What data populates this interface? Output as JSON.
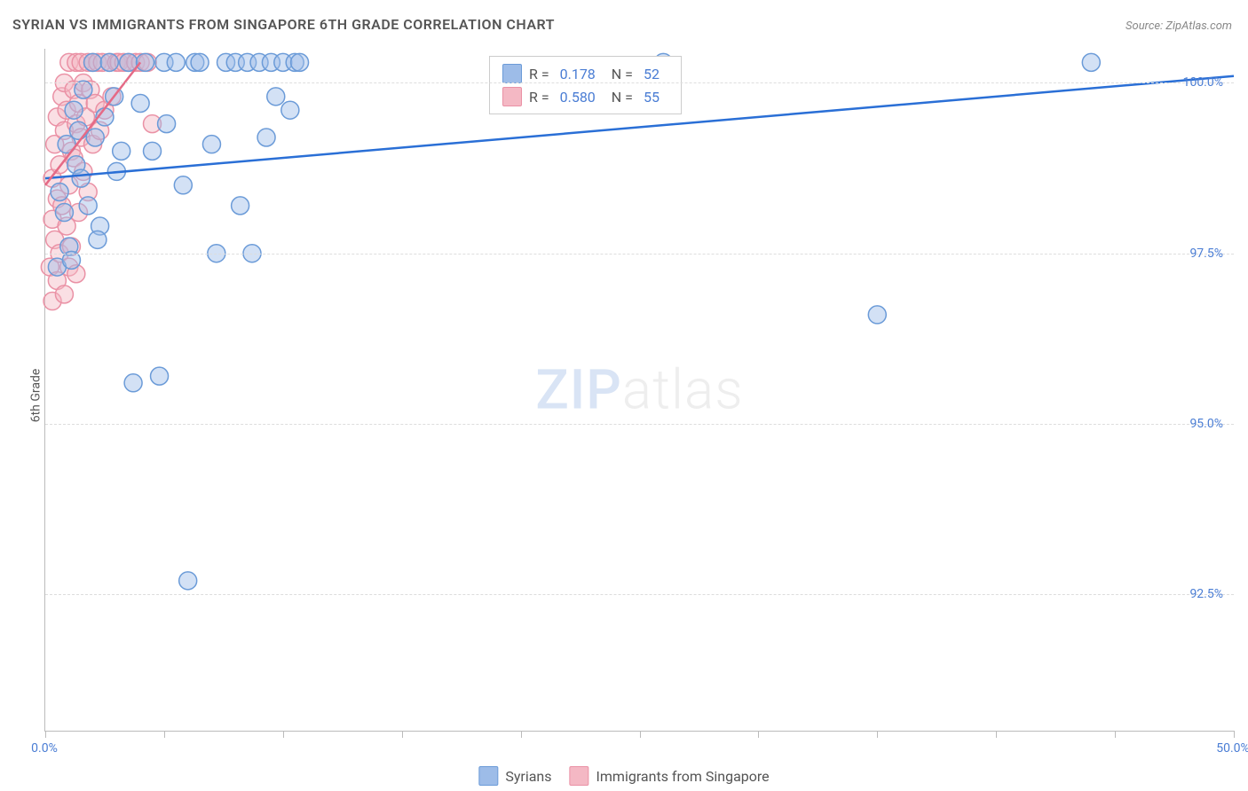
{
  "title": "SYRIAN VS IMMIGRANTS FROM SINGAPORE 6TH GRADE CORRELATION CHART",
  "source": "Source: ZipAtlas.com",
  "ylabel": "6th Grade",
  "watermark": {
    "zip": "ZIP",
    "atlas": "atlas"
  },
  "chart": {
    "type": "scatter",
    "xlim": [
      0,
      50
    ],
    "ylim": [
      90.5,
      100.5
    ],
    "xticks": [
      0,
      5,
      10,
      15,
      20,
      25,
      30,
      35,
      40,
      45,
      50
    ],
    "xlabel_min": "0.0%",
    "xlabel_max": "50.0%",
    "yticks": [
      92.5,
      95.0,
      97.5,
      100.0
    ],
    "ytick_labels": [
      "92.5%",
      "95.0%",
      "97.5%",
      "100.0%"
    ],
    "background_color": "#ffffff",
    "grid_color": "#dddddd",
    "axis_color": "#bbbbbb",
    "marker_radius": 10,
    "marker_opacity": 0.45,
    "line_width": 2.5,
    "series": [
      {
        "name": "Syrians",
        "color_fill": "#9dbce8",
        "color_stroke": "#6b9bd8",
        "line_color": "#2a6fd6",
        "R": "0.178",
        "N": "52",
        "regression": {
          "x1": 0,
          "y1": 98.6,
          "x2": 50,
          "y2": 100.1
        },
        "points": [
          [
            0.5,
            97.3
          ],
          [
            0.6,
            98.4
          ],
          [
            0.8,
            98.1
          ],
          [
            0.9,
            99.1
          ],
          [
            1.0,
            97.6
          ],
          [
            1.2,
            99.6
          ],
          [
            1.3,
            98.8
          ],
          [
            1.4,
            99.3
          ],
          [
            1.6,
            99.9
          ],
          [
            1.8,
            98.2
          ],
          [
            2.0,
            100.3
          ],
          [
            2.1,
            99.2
          ],
          [
            2.3,
            97.9
          ],
          [
            2.5,
            99.5
          ],
          [
            2.7,
            100.3
          ],
          [
            3.0,
            98.7
          ],
          [
            3.2,
            99.0
          ],
          [
            3.5,
            100.3
          ],
          [
            3.7,
            95.6
          ],
          [
            4.0,
            99.7
          ],
          [
            4.2,
            100.3
          ],
          [
            4.5,
            99.0
          ],
          [
            4.8,
            95.7
          ],
          [
            5.0,
            100.3
          ],
          [
            5.1,
            99.4
          ],
          [
            5.5,
            100.3
          ],
          [
            5.8,
            98.5
          ],
          [
            6.0,
            92.7
          ],
          [
            6.3,
            100.3
          ],
          [
            6.5,
            100.3
          ],
          [
            7.0,
            99.1
          ],
          [
            7.2,
            97.5
          ],
          [
            7.6,
            100.3
          ],
          [
            8.0,
            100.3
          ],
          [
            8.2,
            98.2
          ],
          [
            8.5,
            100.3
          ],
          [
            8.7,
            97.5
          ],
          [
            9.0,
            100.3
          ],
          [
            9.3,
            99.2
          ],
          [
            9.5,
            100.3
          ],
          [
            9.7,
            99.8
          ],
          [
            10.0,
            100.3
          ],
          [
            10.3,
            99.6
          ],
          [
            10.5,
            100.3
          ],
          [
            10.7,
            100.3
          ],
          [
            26.0,
            100.3
          ],
          [
            35.0,
            96.6
          ],
          [
            44.0,
            100.3
          ],
          [
            1.1,
            97.4
          ],
          [
            1.5,
            98.6
          ],
          [
            2.2,
            97.7
          ],
          [
            2.9,
            99.8
          ]
        ]
      },
      {
        "name": "Immigrants from Singapore",
        "color_fill": "#f4b8c4",
        "color_stroke": "#ea91a5",
        "line_color": "#e56a86",
        "R": "0.580",
        "N": "55",
        "regression": {
          "x1": 0,
          "y1": 98.5,
          "x2": 4.0,
          "y2": 100.3
        },
        "points": [
          [
            0.2,
            97.3
          ],
          [
            0.3,
            98.0
          ],
          [
            0.3,
            98.6
          ],
          [
            0.4,
            97.7
          ],
          [
            0.4,
            99.1
          ],
          [
            0.5,
            98.3
          ],
          [
            0.5,
            99.5
          ],
          [
            0.6,
            97.5
          ],
          [
            0.6,
            98.8
          ],
          [
            0.7,
            99.8
          ],
          [
            0.7,
            98.2
          ],
          [
            0.8,
            99.3
          ],
          [
            0.8,
            100.0
          ],
          [
            0.9,
            97.9
          ],
          [
            0.9,
            99.6
          ],
          [
            1.0,
            98.5
          ],
          [
            1.0,
            100.3
          ],
          [
            1.1,
            99.0
          ],
          [
            1.1,
            97.6
          ],
          [
            1.2,
            99.9
          ],
          [
            1.2,
            98.9
          ],
          [
            1.3,
            100.3
          ],
          [
            1.3,
            99.4
          ],
          [
            1.4,
            98.1
          ],
          [
            1.4,
            99.7
          ],
          [
            1.5,
            100.3
          ],
          [
            1.5,
            99.2
          ],
          [
            1.6,
            98.7
          ],
          [
            1.6,
            100.0
          ],
          [
            1.7,
            99.5
          ],
          [
            1.8,
            100.3
          ],
          [
            1.8,
            98.4
          ],
          [
            1.9,
            99.9
          ],
          [
            2.0,
            100.3
          ],
          [
            2.0,
            99.1
          ],
          [
            2.1,
            99.7
          ],
          [
            2.2,
            100.3
          ],
          [
            2.3,
            99.3
          ],
          [
            2.4,
            100.3
          ],
          [
            2.5,
            99.6
          ],
          [
            2.7,
            100.3
          ],
          [
            2.8,
            99.8
          ],
          [
            3.0,
            100.3
          ],
          [
            3.1,
            100.3
          ],
          [
            3.3,
            100.3
          ],
          [
            3.5,
            100.3
          ],
          [
            3.8,
            100.3
          ],
          [
            4.0,
            100.3
          ],
          [
            4.3,
            100.3
          ],
          [
            4.5,
            99.4
          ],
          [
            0.3,
            96.8
          ],
          [
            0.5,
            97.1
          ],
          [
            0.8,
            96.9
          ],
          [
            1.0,
            97.3
          ],
          [
            1.3,
            97.2
          ]
        ]
      }
    ]
  },
  "legend": {
    "r_label": "R =",
    "n_label": "N ="
  },
  "bottom_legend": {
    "items": [
      "Syrians",
      "Immigrants from Singapore"
    ]
  }
}
